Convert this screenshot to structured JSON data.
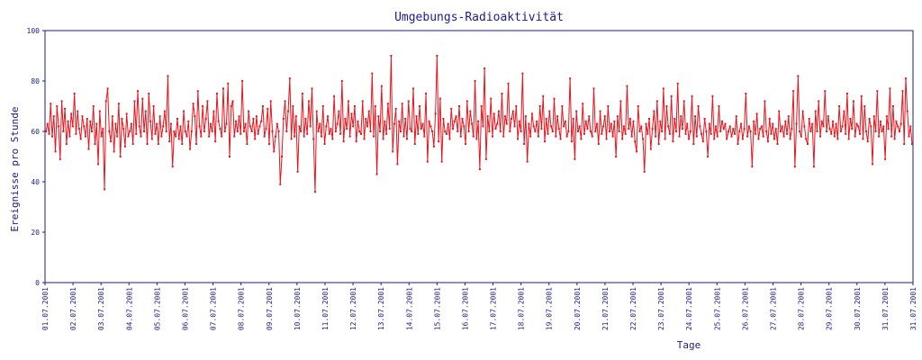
{
  "chart_data": {
    "type": "line",
    "title": "Umgebungs-Radioaktivität",
    "xlabel": "Tage",
    "ylabel": "Ereignisse pro Stunde",
    "ylim": [
      0,
      100
    ],
    "yticks": [
      0,
      20,
      40,
      60,
      80,
      100
    ],
    "x_ticks": [
      "01.07.2001",
      "02.07.2001",
      "03.07.2001",
      "04.07.2001",
      "05.07.2001",
      "06.07.2001",
      "07.07.2001",
      "08.07.2001",
      "09.07.2001",
      "10.07.2001",
      "11.07.2001",
      "12.07.2001",
      "13.07.2001",
      "14.07.2001",
      "15.07.2001",
      "16.07.2001",
      "17.07.2001",
      "18.07.2001",
      "19.07.2001",
      "20.07.2001",
      "21.07.2001",
      "22.07.2001",
      "23.07.2001",
      "24.07.2001",
      "25.07.2001",
      "26.07.2001",
      "27.07.2001",
      "28.07.2001",
      "29.07.2001",
      "30.07.2001",
      "31.07.2001",
      "31.07.2001"
    ],
    "grid": false,
    "legend": "none",
    "colors": {
      "series": "#e8141c",
      "axis": "#1c1c8c",
      "text": "#1c1c8c"
    },
    "series": [
      {
        "sampling": "hourly",
        "values": [
          60,
          63,
          59,
          71,
          58,
          66,
          52,
          70,
          62,
          49,
          72,
          60,
          69,
          55,
          64,
          58,
          67,
          62,
          75,
          59,
          68,
          61,
          57,
          66,
          62,
          58,
          65,
          53,
          64,
          60,
          70,
          55,
          63,
          47,
          68,
          58,
          61,
          37,
          72,
          77,
          60,
          56,
          66,
          52,
          63,
          58,
          71,
          50,
          65,
          61,
          54,
          67,
          58,
          60,
          63,
          55,
          72,
          59,
          76,
          62,
          58,
          73,
          60,
          68,
          55,
          75,
          64,
          57,
          70,
          59,
          63,
          55,
          66,
          58,
          62,
          68,
          60,
          82,
          56,
          63,
          46,
          60,
          58,
          65,
          57,
          62,
          55,
          68,
          60,
          58,
          64,
          53,
          60,
          71,
          66,
          55,
          76,
          62,
          58,
          70,
          60,
          65,
          72,
          58,
          63,
          60,
          68,
          56,
          75,
          64,
          61,
          58,
          77,
          60,
          63,
          79,
          50,
          70,
          72,
          58,
          64,
          60,
          66,
          59,
          80,
          60,
          63,
          55,
          68,
          62,
          60,
          65,
          57,
          66,
          59,
          62,
          64,
          70,
          58,
          61,
          69,
          55,
          72,
          60,
          52,
          58,
          63,
          60,
          39,
          50,
          65,
          72,
          60,
          68,
          81,
          57,
          70,
          58,
          66,
          44,
          62,
          60,
          75,
          58,
          65,
          59,
          72,
          62,
          77,
          57,
          36,
          68,
          60,
          63,
          58,
          70,
          55,
          62,
          66,
          59,
          61,
          57,
          74,
          60,
          63,
          68,
          59,
          80,
          56,
          65,
          61,
          72,
          58,
          67,
          62,
          70,
          56,
          64,
          60,
          59,
          72,
          57,
          65,
          62,
          68,
          60,
          83,
          58,
          70,
          43,
          66,
          60,
          78,
          57,
          64,
          59,
          71,
          61,
          90,
          52,
          63,
          69,
          47,
          64,
          60,
          71,
          58,
          65,
          57,
          72,
          61,
          60,
          77,
          55,
          66,
          59,
          70,
          61,
          63,
          58,
          75,
          48,
          64,
          62,
          60,
          54,
          67,
          90,
          56,
          73,
          48,
          65,
          60,
          59,
          63,
          57,
          69,
          61,
          64,
          66,
          60,
          70,
          58,
          65,
          62,
          55,
          72,
          60,
          68,
          63,
          58,
          80,
          57,
          64,
          45,
          70,
          62,
          85,
          49,
          66,
          60,
          73,
          58,
          67,
          61,
          63,
          68,
          60,
          75,
          58,
          66,
          63,
          79,
          60,
          65,
          68,
          62,
          70,
          57,
          64,
          60,
          83,
          55,
          66,
          48,
          63,
          58,
          67,
          62,
          60,
          64,
          58,
          70,
          61,
          74,
          56,
          65,
          59,
          68,
          62,
          60,
          73,
          58,
          66,
          61,
          57,
          70,
          62,
          64,
          58,
          60,
          81,
          56,
          65,
          49,
          68,
          60,
          62,
          57,
          71,
          59,
          64,
          61,
          66,
          60,
          58,
          77,
          60,
          63,
          55,
          68,
          59,
          62,
          66,
          57,
          70,
          60,
          63,
          58,
          64,
          50,
          66,
          60,
          72,
          57,
          62,
          59,
          78,
          61,
          65,
          58,
          64,
          56,
          52,
          70,
          60,
          62,
          57,
          44,
          63,
          59,
          65,
          53,
          61,
          68,
          58,
          72,
          55,
          64,
          60,
          77,
          57,
          70,
          62,
          59,
          74,
          56,
          65,
          60,
          79,
          58,
          66,
          61,
          72,
          59,
          63,
          57,
          60,
          74,
          55,
          66,
          58,
          70,
          62,
          59,
          56,
          65,
          60,
          50,
          63,
          59,
          74,
          57,
          62,
          58,
          70,
          60,
          64,
          61,
          63,
          57,
          60,
          62,
          58,
          61,
          59,
          66,
          55,
          60,
          63,
          57,
          61,
          75,
          58,
          62,
          60,
          46,
          64,
          59,
          67,
          57,
          61,
          62,
          58,
          72,
          60,
          56,
          65,
          59,
          63,
          57,
          61,
          55,
          68,
          60,
          62,
          58,
          64,
          59,
          66,
          57,
          61,
          76,
          46,
          63,
          82,
          60,
          58,
          68,
          62,
          57,
          55,
          65,
          60,
          63,
          46,
          68,
          60,
          72,
          58,
          64,
          62,
          76,
          60,
          66,
          61,
          59,
          64,
          58,
          63,
          57,
          70,
          60,
          62,
          68,
          59,
          75,
          57,
          65,
          61,
          72,
          58,
          63,
          62,
          59,
          74,
          57,
          70,
          60,
          56,
          65,
          62,
          47,
          66,
          60,
          76,
          58,
          64,
          60,
          62,
          49,
          66,
          61,
          77,
          58,
          70,
          57,
          64,
          62,
          60,
          63,
          76,
          55,
          81,
          68,
          58,
          62,
          55
        ]
      }
    ]
  }
}
